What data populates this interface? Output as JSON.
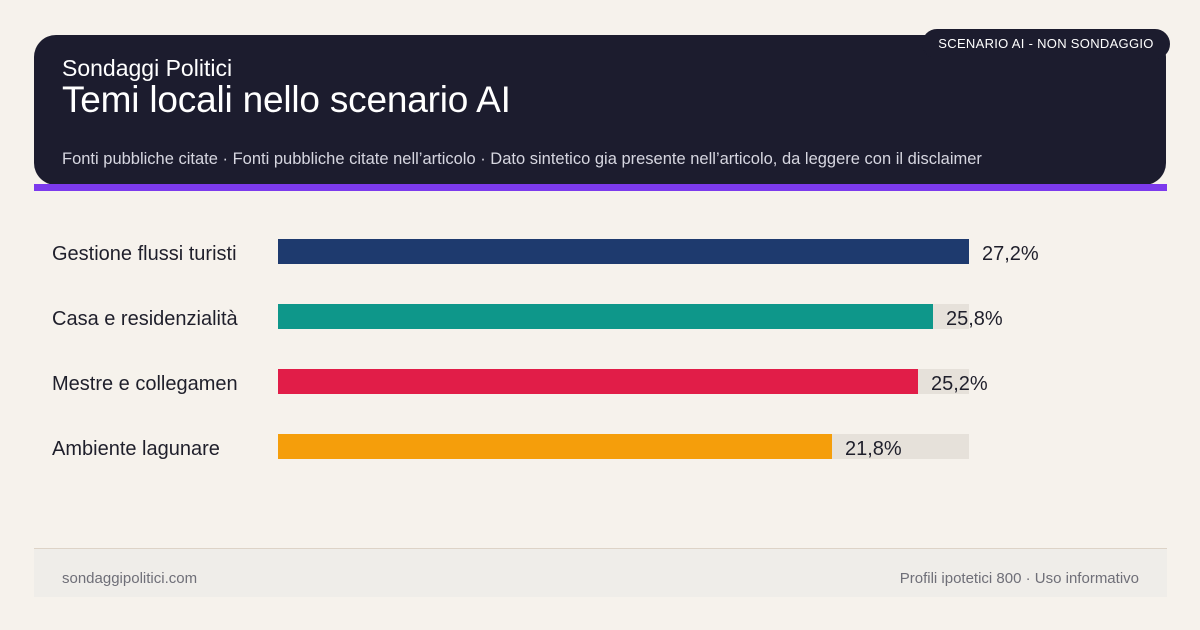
{
  "header": {
    "brand": "Sondaggi Politici",
    "title": "Temi locali nello scenario AI",
    "sources": "Fonti pubbliche citate · Fonti pubbliche citate nell’articolo · Dato sintetico gia presente nell’articolo, da leggere con il disclaimer",
    "badge": "SCENARIO AI - NON SONDAGGIO"
  },
  "colors": {
    "header_bg": "#1c1c2e",
    "accent": "#7c3aed",
    "track": "#e6e1da",
    "background": "#f6f2ec"
  },
  "chart_data": {
    "type": "bar",
    "orientation": "horizontal",
    "categories": [
      "Gestione flussi turisti",
      "Casa e residenzialità",
      "Mestre e collegamen",
      "Ambiente lagunare"
    ],
    "values": [
      27.2,
      25.8,
      25.2,
      21.8
    ],
    "value_labels": [
      "27,2%",
      "25,8%",
      "25,2%",
      "21,8%"
    ],
    "colors": [
      "#1e3a6e",
      "#0e978a",
      "#e11d48",
      "#f59e0b"
    ],
    "xlim": [
      0,
      27.2
    ],
    "title": "",
    "xlabel": "",
    "ylabel": "",
    "grid": false
  },
  "footer": {
    "site": "sondaggipolitici.com",
    "note": "Profili ipotetici 800 · Uso informativo"
  }
}
